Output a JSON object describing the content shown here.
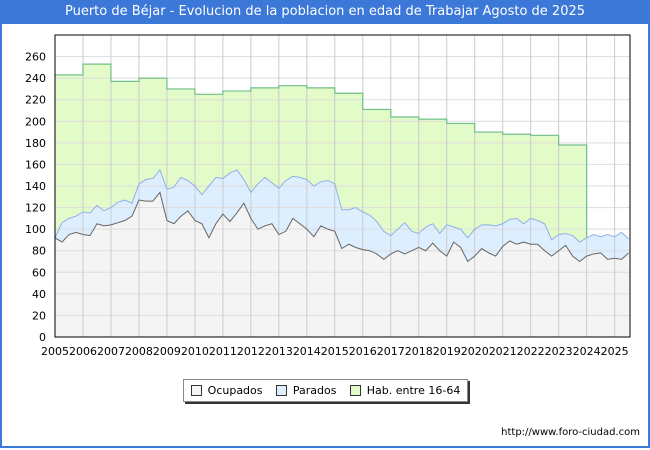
{
  "chart_data": {
    "type": "area",
    "title": "Puerto de Béjar - Evolucion de la poblacion en edad de Trabajar Agosto de 2025",
    "xlabel": "",
    "ylabel": "",
    "xlim": [
      2005,
      2025.55
    ],
    "ylim": [
      0,
      280
    ],
    "x_ticks": [
      "2005",
      "2006",
      "2007",
      "2008",
      "2009",
      "2010",
      "2011",
      "2012",
      "2013",
      "2014",
      "2015",
      "2016",
      "2017",
      "2018",
      "2019",
      "2020",
      "2021",
      "2022",
      "2023",
      "2024",
      "2025"
    ],
    "y_ticks": [
      0,
      20,
      40,
      60,
      80,
      100,
      120,
      140,
      160,
      180,
      200,
      220,
      240,
      260
    ],
    "x_start": 2005,
    "x_step": 0.25,
    "series": [
      {
        "name": "Ocupados",
        "color": "#f4f4f4",
        "line": "#666666",
        "values": [
          92,
          88,
          95,
          97,
          95,
          94,
          105,
          103,
          104,
          106,
          108,
          112,
          127,
          126,
          126,
          134,
          108,
          105,
          112,
          117,
          108,
          105,
          92,
          105,
          114,
          107,
          115,
          124,
          110,
          100,
          103,
          105,
          95,
          98,
          110,
          105,
          100,
          93,
          103,
          100,
          98,
          82,
          86,
          83,
          81,
          80,
          77,
          72,
          77,
          80,
          77,
          80,
          83,
          80,
          87,
          80,
          75,
          88,
          83,
          70,
          75,
          82,
          78,
          75,
          84,
          89,
          86,
          88,
          86,
          86,
          80,
          75,
          80,
          85,
          75,
          70,
          75,
          77,
          78,
          72,
          73,
          72,
          78
        ]
      },
      {
        "name": "Parados",
        "color": "#ddeeff",
        "line": "#8fb0e8",
        "values": [
          0,
          18,
          15,
          15,
          21,
          21,
          17,
          14,
          16,
          19,
          19,
          12,
          15,
          20,
          21,
          21,
          29,
          34,
          36,
          28,
          32,
          27,
          48,
          43,
          33,
          45,
          40,
          22,
          24,
          42,
          45,
          38,
          43,
          47,
          39,
          43,
          46,
          47,
          41,
          45,
          44,
          36,
          32,
          37,
          35,
          33,
          30,
          26,
          17,
          20,
          29,
          18,
          13,
          22,
          18,
          16,
          29,
          14,
          17,
          22,
          25,
          22,
          26,
          28,
          21,
          20,
          24,
          17,
          24,
          22,
          25,
          15,
          15,
          11,
          19,
          18,
          17,
          18,
          15,
          23,
          20,
          25,
          13
        ]
      },
      {
        "name": "Hab. entre 16-64",
        "color": "#e3fbc9",
        "line": "#6fbf8a",
        "years": [
          2005,
          2006,
          2007,
          2008,
          2009,
          2010,
          2011,
          2012,
          2013,
          2014,
          2015,
          2016,
          2017,
          2018,
          2019,
          2020,
          2021,
          2022,
          2023
        ],
        "values": [
          243,
          253,
          237,
          240,
          230,
          225,
          228,
          231,
          233,
          231,
          226,
          211,
          204,
          202,
          198,
          190,
          188,
          187,
          178
        ]
      }
    ],
    "legend": "bottom",
    "grid": true
  },
  "footer": {
    "url": "http://www.foro-ciudad.com"
  }
}
